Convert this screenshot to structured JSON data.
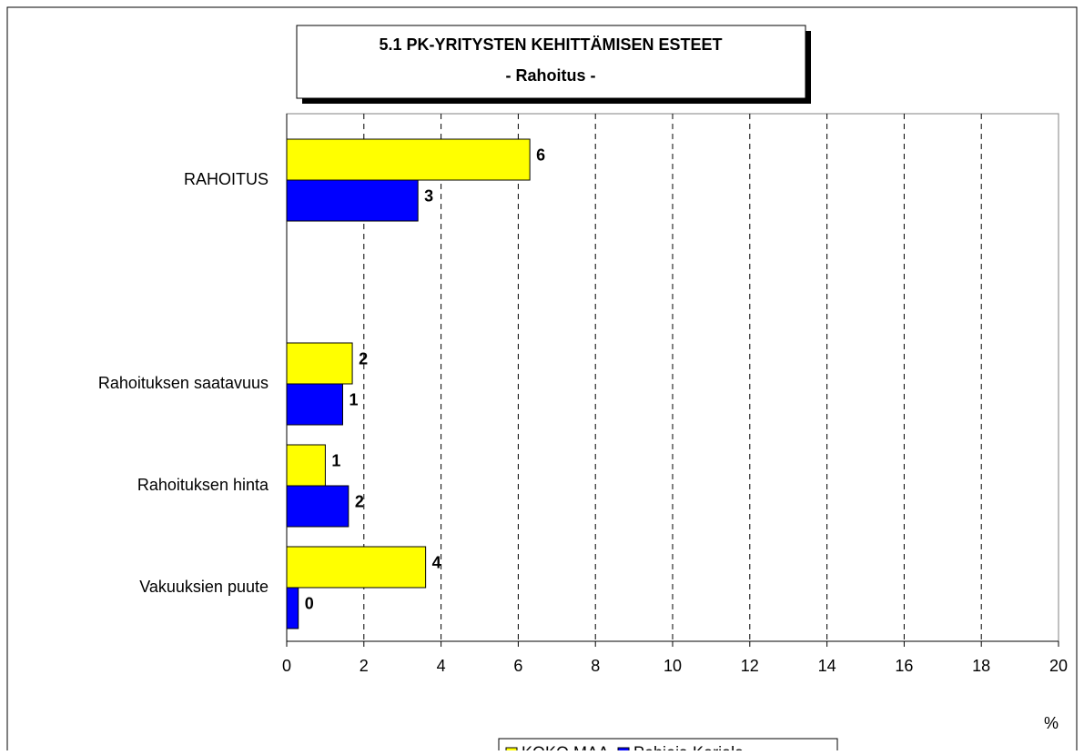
{
  "chart_data": {
    "type": "hbar",
    "title": "5.1 PK-YRITYSTEN KEHITTÄMISEN ESTEET",
    "subtitle": "- Rahoitus -",
    "x_label": "%",
    "categories": [
      "RAHOITUS",
      null,
      "Rahoituksen saatavuus",
      "Rahoituksen hinta",
      "Vakuuksien puute"
    ],
    "series": [
      {
        "name": "KOKO MAA",
        "color": "#ffff00",
        "values": [
          6.3,
          null,
          1.7,
          1.0,
          3.6
        ],
        "value_labels": [
          "6",
          null,
          "2",
          "1",
          "4"
        ]
      },
      {
        "name": "Pohjois-Karjala",
        "color": "#0000ff",
        "values": [
          3.4,
          null,
          1.45,
          1.6,
          0.3
        ],
        "value_labels": [
          "3",
          null,
          "1",
          "2",
          "0"
        ]
      }
    ],
    "xlim": [
      0,
      20
    ],
    "xticks": [
      0,
      2,
      4,
      6,
      8,
      10,
      12,
      14,
      16,
      18,
      20
    ],
    "grid": true,
    "legend": "bottom"
  }
}
